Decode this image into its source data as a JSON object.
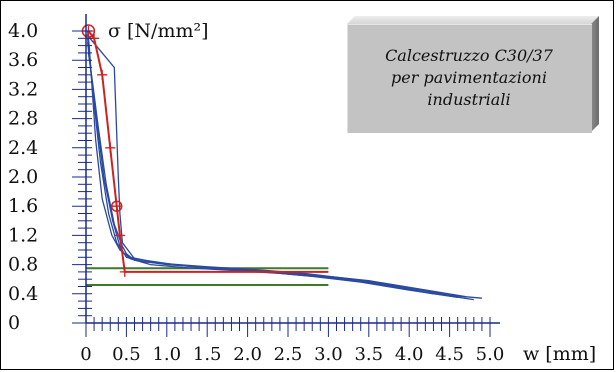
{
  "chart_data": {
    "type": "line",
    "title": "",
    "ylabel": "σ [N/mm²]",
    "xlabel": "w [mm]",
    "ylim": [
      0,
      4.0
    ],
    "xlim": [
      0,
      5.0
    ],
    "y_ticks": [
      "0",
      "0.4",
      "0.8",
      "1.2",
      "1.6",
      "2.0",
      "2.4",
      "2.8",
      "3.2",
      "3.6",
      "4.0"
    ],
    "x_ticks": [
      "0",
      "0.5",
      "1.0",
      "1.5",
      "2.0",
      "2.5",
      "3.0",
      "3.5",
      "4.0",
      "4.5",
      "5.0"
    ],
    "annotation": "Calcestruzzo C30/37\nper pavimentazioni\nindustriali",
    "colors": {
      "curves": "#2a4aa0",
      "mean": "#cc2222",
      "design": "#3d7a2a",
      "axes": "#1a2a8a"
    },
    "series": [
      {
        "x": [
          0.02,
          0.04,
          0.07,
          0.12,
          0.2,
          0.32,
          0.42,
          0.48,
          0.55,
          0.8,
          1.2,
          1.8,
          2.4,
          3.0,
          3.6,
          4.2,
          4.8
        ],
        "y": [
          4.0,
          3.8,
          3.3,
          2.5,
          1.7,
          1.2,
          1.0,
          0.95,
          0.88,
          0.8,
          0.76,
          0.72,
          0.68,
          0.62,
          0.55,
          0.42,
          0.32
        ]
      },
      {
        "x": [
          0.02,
          0.05,
          0.1,
          0.18,
          0.28,
          0.38,
          0.46,
          0.55,
          0.9,
          1.5,
          2.1,
          2.7,
          3.3,
          3.9,
          4.5,
          4.9
        ],
        "y": [
          3.9,
          3.6,
          3.0,
          2.2,
          1.5,
          1.1,
          0.96,
          0.9,
          0.82,
          0.77,
          0.73,
          0.68,
          0.6,
          0.5,
          0.38,
          0.34
        ]
      },
      {
        "x": [
          0.03,
          0.08,
          0.15,
          0.25,
          0.35,
          0.45,
          0.5,
          0.6,
          1.0,
          1.6,
          2.2,
          2.8,
          3.4,
          4.0,
          4.6
        ],
        "y": [
          3.7,
          3.3,
          2.7,
          1.9,
          1.35,
          1.05,
          0.95,
          0.86,
          0.8,
          0.75,
          0.7,
          0.64,
          0.56,
          0.45,
          0.35
        ]
      },
      {
        "x": [
          0.02,
          0.06,
          0.12,
          0.22,
          0.33,
          0.42,
          0.5,
          0.7,
          1.3,
          1.9,
          2.5,
          3.1,
          3.7,
          4.3
        ],
        "y": [
          3.85,
          3.45,
          2.9,
          2.0,
          1.4,
          1.05,
          0.9,
          0.84,
          0.78,
          0.73,
          0.69,
          0.62,
          0.52,
          0.4
        ]
      },
      {
        "x": [
          0.01,
          0.05,
          0.2,
          0.35,
          0.4,
          0.42,
          0.45,
          0.6,
          1.1,
          1.7,
          2.3,
          2.9,
          3.5,
          4.1,
          4.7
        ],
        "y": [
          3.95,
          3.9,
          3.7,
          3.5,
          2.0,
          1.5,
          1.1,
          0.88,
          0.8,
          0.74,
          0.7,
          0.65,
          0.58,
          0.47,
          0.36
        ]
      }
    ],
    "mean_curve": {
      "x": [
        0.03,
        0.1,
        0.2,
        0.3,
        0.38,
        0.42,
        0.48,
        3.0
      ],
      "y": [
        4.0,
        3.9,
        3.4,
        2.4,
        1.6,
        1.2,
        0.7,
        0.7
      ]
    },
    "design_lines": [
      {
        "x": [
          0,
          3.0
        ],
        "y": [
          0.75,
          0.75
        ]
      },
      {
        "x": [
          0,
          3.0
        ],
        "y": [
          0.52,
          0.52
        ]
      }
    ]
  }
}
